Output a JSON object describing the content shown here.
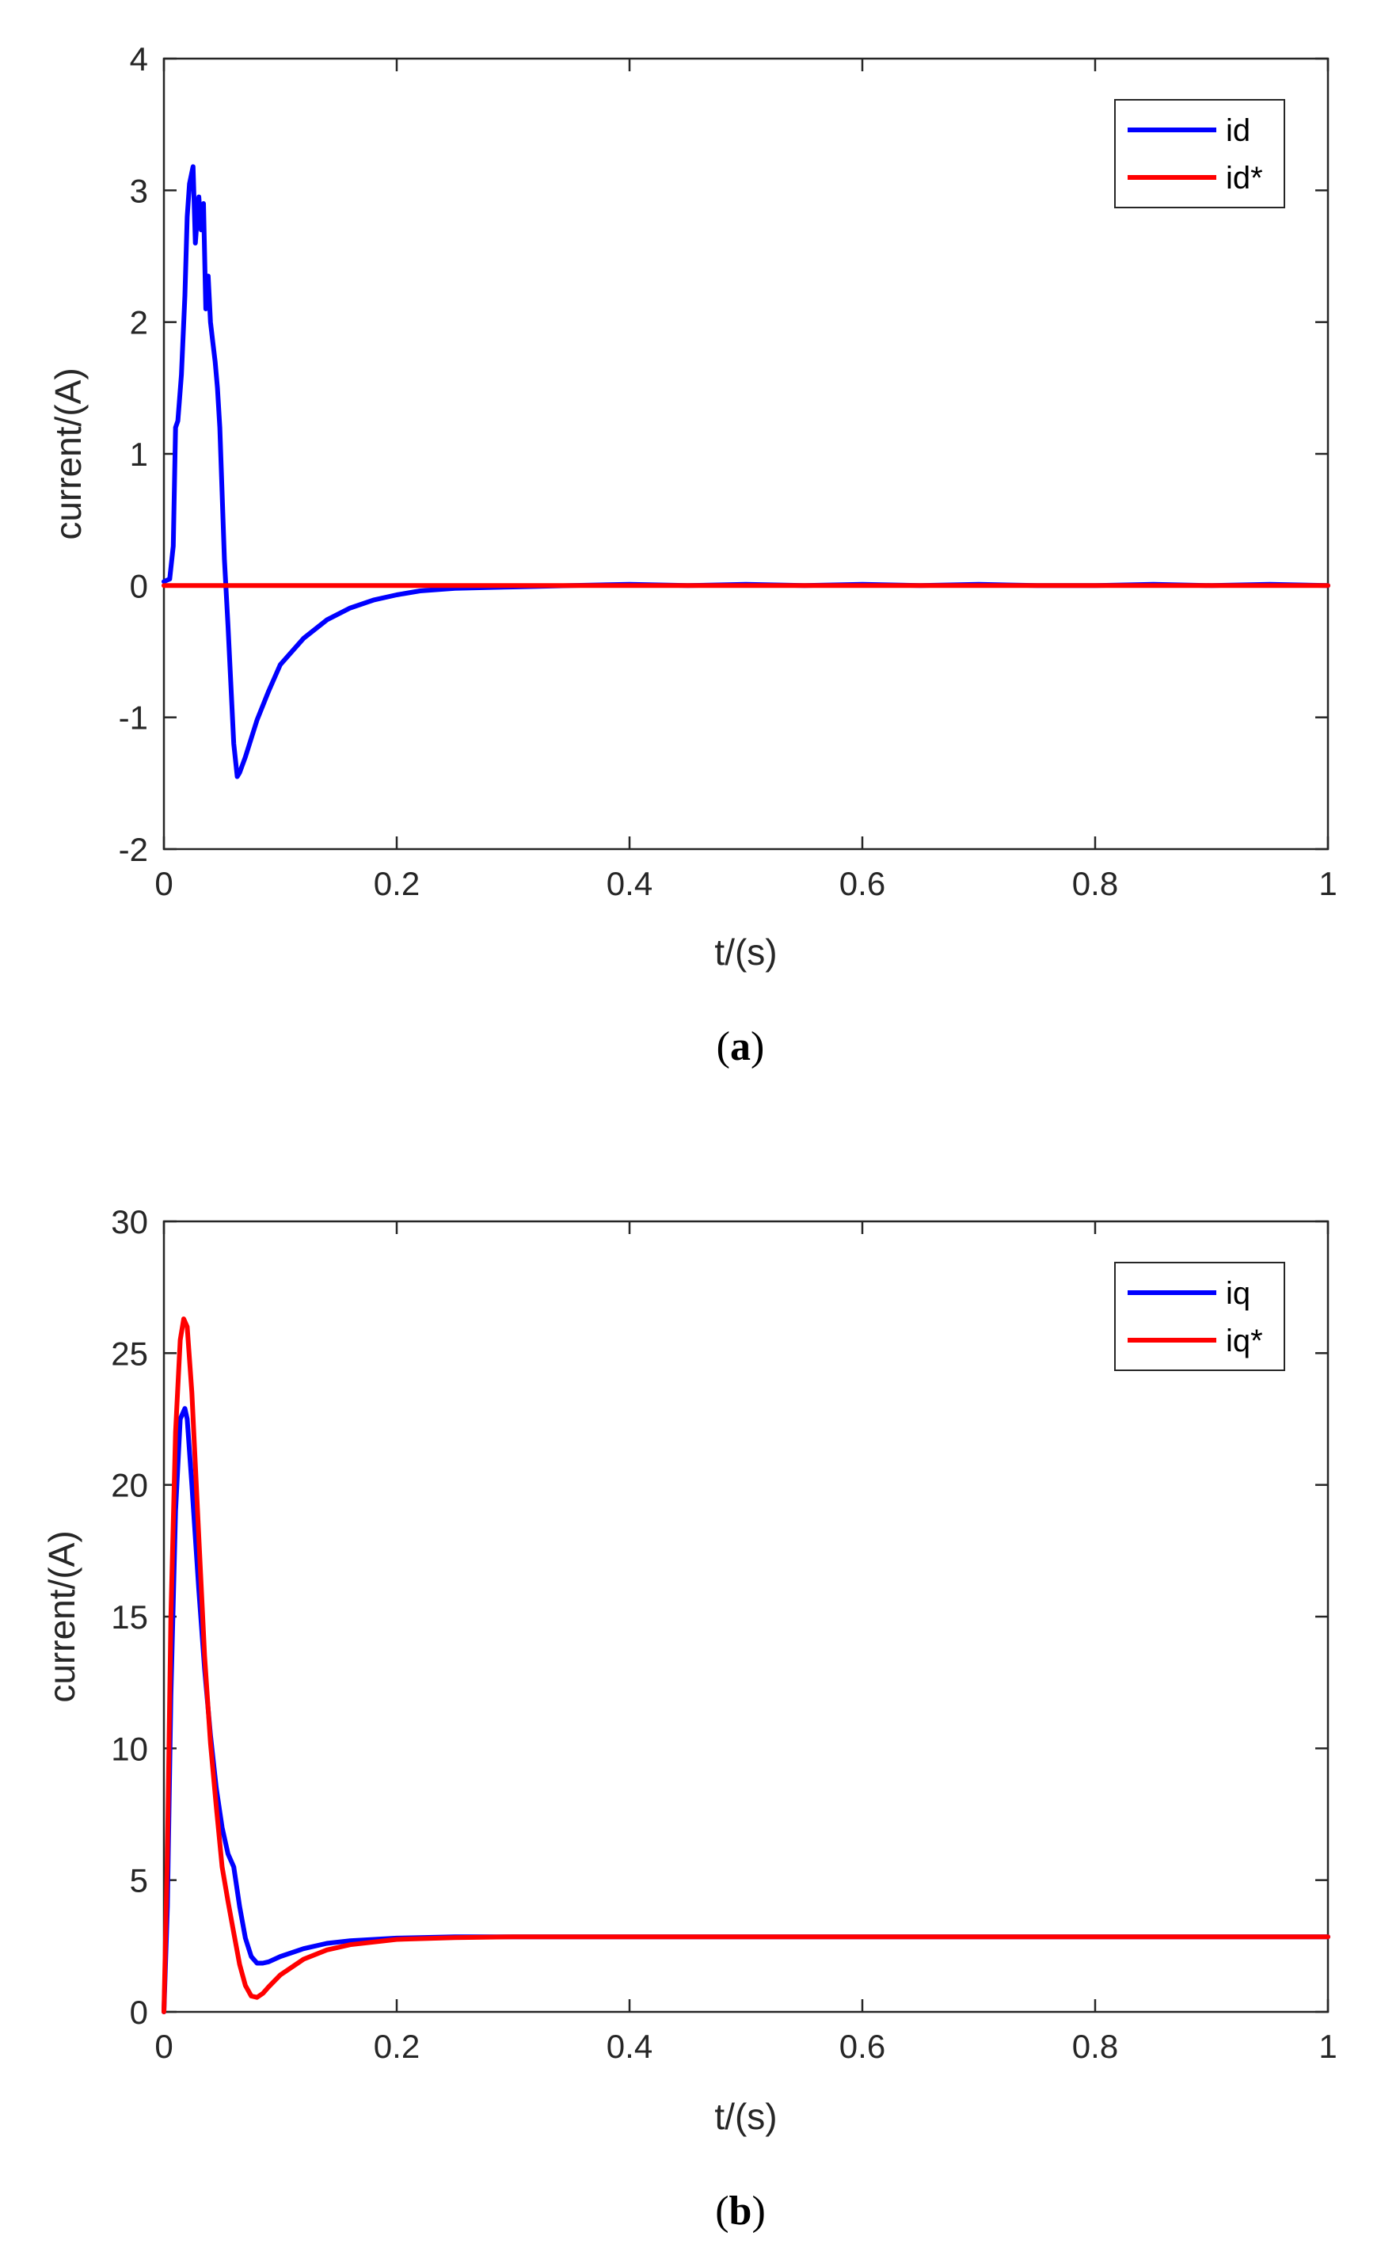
{
  "colors": {
    "blue": "#0000ff",
    "red": "#ff0000",
    "axis": "#262626"
  },
  "chart_data": [
    {
      "type": "line",
      "caption_letter": "a",
      "xlabel": "t/(s)",
      "ylabel": "current/(A)",
      "xlim": [
        0,
        1
      ],
      "ylim": [
        -2,
        4
      ],
      "xticks": [
        0,
        0.2,
        0.4,
        0.6,
        0.8,
        1
      ],
      "xtick_labels": [
        "0",
        "0.2",
        "0.4",
        "0.6",
        "0.8",
        "1"
      ],
      "yticks": [
        -2,
        -1,
        0,
        1,
        2,
        3,
        4
      ],
      "ytick_labels": [
        "-2",
        "-1",
        "0",
        "1",
        "2",
        "3",
        "4"
      ],
      "legend_position": "top-right",
      "series": [
        {
          "name": "id",
          "color": "#0000ff",
          "x": [
            0,
            0.005,
            0.008,
            0.01,
            0.012,
            0.015,
            0.018,
            0.02,
            0.022,
            0.025,
            0.027,
            0.03,
            0.032,
            0.034,
            0.036,
            0.038,
            0.04,
            0.042,
            0.044,
            0.046,
            0.048,
            0.05,
            0.052,
            0.055,
            0.06,
            0.063,
            0.065,
            0.07,
            0.08,
            0.09,
            0.1,
            0.12,
            0.14,
            0.16,
            0.18,
            0.2,
            0.22,
            0.25,
            0.3,
            0.35,
            0.4,
            0.45,
            0.5,
            0.55,
            0.6,
            0.65,
            0.7,
            0.75,
            0.8,
            0.85,
            0.9,
            0.95,
            1.0
          ],
          "y": [
            0.03,
            0.05,
            0.3,
            1.2,
            1.25,
            1.6,
            2.2,
            2.8,
            3.05,
            3.18,
            2.6,
            2.95,
            2.7,
            2.9,
            2.1,
            2.35,
            2.0,
            1.85,
            1.7,
            1.5,
            1.2,
            0.7,
            0.2,
            -0.3,
            -1.2,
            -1.45,
            -1.42,
            -1.3,
            -1.02,
            -0.8,
            -0.6,
            -0.4,
            -0.26,
            -0.17,
            -0.11,
            -0.07,
            -0.04,
            -0.02,
            -0.01,
            0.0,
            0.01,
            0.0,
            0.01,
            0.0,
            0.01,
            0.0,
            0.01,
            0.0,
            0.0,
            0.01,
            0.0,
            0.01,
            0.0
          ]
        },
        {
          "name": "id*",
          "color": "#ff0000",
          "x": [
            0,
            1
          ],
          "y": [
            0,
            0
          ]
        }
      ]
    },
    {
      "type": "line",
      "caption_letter": "b",
      "xlabel": "t/(s)",
      "ylabel": "current/(A)",
      "xlim": [
        0,
        1
      ],
      "ylim": [
        0,
        30
      ],
      "xticks": [
        0,
        0.2,
        0.4,
        0.6,
        0.8,
        1
      ],
      "xtick_labels": [
        "0",
        "0.2",
        "0.4",
        "0.6",
        "0.8",
        "1"
      ],
      "yticks": [
        0,
        5,
        10,
        15,
        20,
        25,
        30
      ],
      "ytick_labels": [
        "0",
        "5",
        "10",
        "15",
        "20",
        "25",
        "30"
      ],
      "legend_position": "top-right",
      "series": [
        {
          "name": "iq",
          "color": "#0000ff",
          "x": [
            0,
            0.003,
            0.006,
            0.01,
            0.014,
            0.018,
            0.02,
            0.024,
            0.03,
            0.035,
            0.04,
            0.045,
            0.05,
            0.055,
            0.06,
            0.065,
            0.07,
            0.075,
            0.08,
            0.085,
            0.09,
            0.1,
            0.12,
            0.14,
            0.16,
            0.2,
            0.25,
            0.3,
            0.4,
            0.5,
            0.6,
            0.7,
            0.8,
            0.9,
            1.0
          ],
          "y": [
            0,
            4,
            12,
            19,
            22.5,
            22.9,
            22.5,
            20,
            16,
            13,
            10.5,
            8.5,
            7,
            6,
            5.5,
            4,
            2.8,
            2.1,
            1.85,
            1.85,
            1.9,
            2.1,
            2.4,
            2.6,
            2.7,
            2.8,
            2.85,
            2.85,
            2.85,
            2.85,
            2.85,
            2.85,
            2.85,
            2.85,
            2.85
          ]
        },
        {
          "name": "iq*",
          "color": "#ff0000",
          "x": [
            0,
            0.003,
            0.006,
            0.01,
            0.014,
            0.017,
            0.02,
            0.024,
            0.03,
            0.035,
            0.04,
            0.045,
            0.05,
            0.055,
            0.06,
            0.065,
            0.07,
            0.075,
            0.08,
            0.085,
            0.09,
            0.1,
            0.12,
            0.14,
            0.16,
            0.2,
            0.25,
            0.3,
            0.4,
            0.5,
            0.6,
            0.7,
            0.8,
            0.9,
            1.0
          ],
          "y": [
            0,
            6,
            15,
            22,
            25.5,
            26.3,
            26,
            23.5,
            18,
            13.5,
            10.2,
            7.8,
            5.5,
            4.2,
            3.0,
            1.8,
            1.0,
            0.6,
            0.55,
            0.7,
            0.95,
            1.4,
            2.0,
            2.35,
            2.55,
            2.75,
            2.82,
            2.85,
            2.85,
            2.85,
            2.85,
            2.85,
            2.85,
            2.85,
            2.85
          ]
        }
      ]
    }
  ]
}
